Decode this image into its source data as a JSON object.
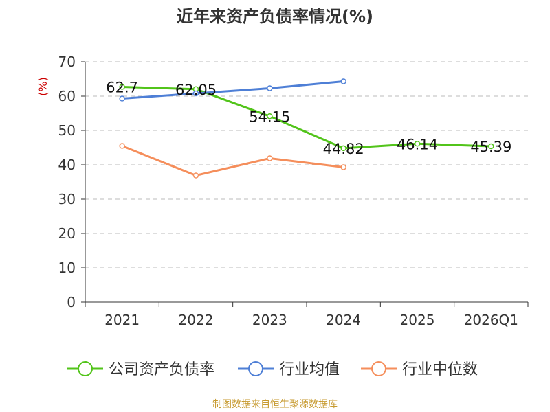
{
  "chart_data": {
    "type": "line",
    "title": "近年来资产负债率情况(%)",
    "ylabel": "(%)",
    "xlabel": "",
    "ylim": [
      0,
      70
    ],
    "yticks": [
      0,
      10,
      20,
      30,
      40,
      50,
      60,
      70
    ],
    "categories": [
      "2021",
      "2022",
      "2023",
      "2024",
      "2025",
      "2026Q1"
    ],
    "grid": true,
    "legend_position": "bottom",
    "series": [
      {
        "name": "公司资产负债率",
        "color": "#52c41a",
        "values": [
          62.7,
          62.05,
          54.15,
          44.82,
          46.14,
          45.39
        ],
        "labels": [
          "62.7",
          "62.05",
          "54.15",
          "44.82",
          "46.14",
          "45.39"
        ]
      },
      {
        "name": "行业均值",
        "color": "#4e7fd6",
        "values": [
          59.3,
          60.8,
          62.3,
          64.3,
          null,
          null
        ]
      },
      {
        "name": "行业中位数",
        "color": "#f58e5b",
        "values": [
          45.5,
          36.9,
          41.9,
          39.3,
          null,
          null
        ]
      }
    ],
    "source": "制图数据来自恒生聚源数据库"
  }
}
